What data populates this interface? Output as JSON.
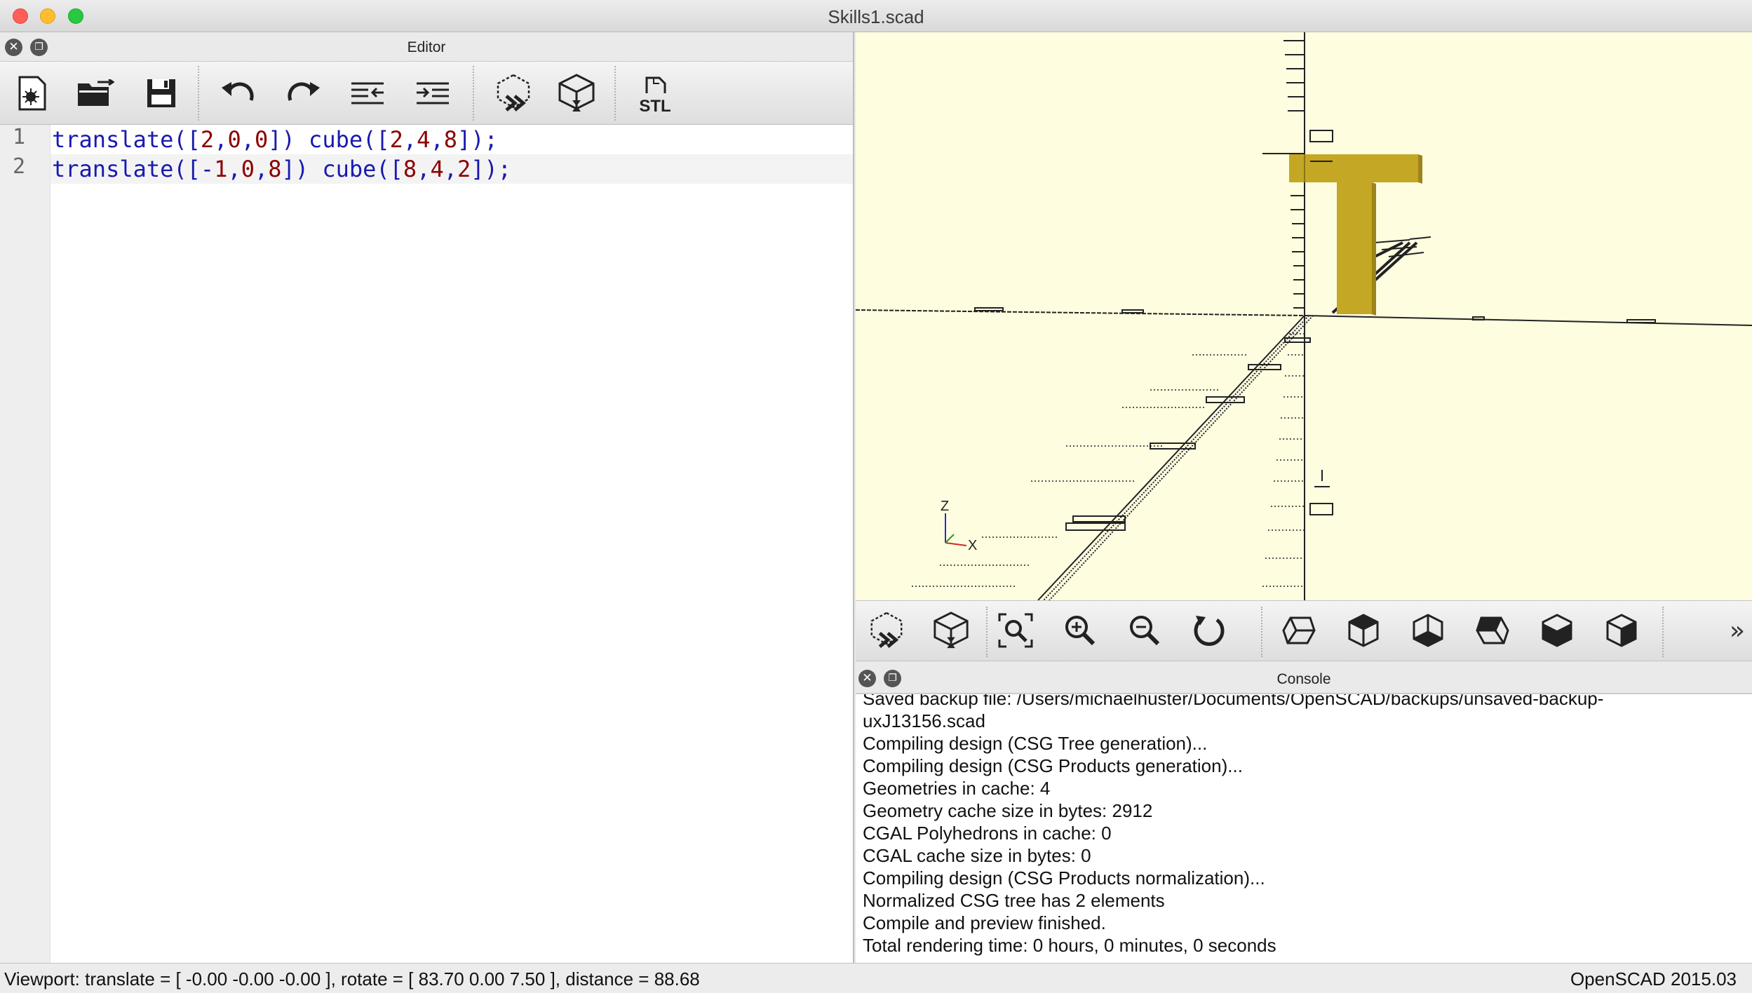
{
  "window": {
    "title": "Skills1.scad"
  },
  "editor": {
    "title": "Editor",
    "lines": [
      {
        "number": "1",
        "text": "translate([2,0,0]) cube([2,4,8]);"
      },
      {
        "number": "2",
        "text": "translate([-1,0,8]) cube([8,4,2]);"
      }
    ]
  },
  "toolbar_stl_label": "STL",
  "viewport": {
    "axis_labels": {
      "z": "Z",
      "x": "X"
    },
    "colors": {
      "background": "#fefde0",
      "model": "#c4a724"
    }
  },
  "console": {
    "title": "Console",
    "lines": [
      "Saved backup file: /Users/michaelhuster/Documents/OpenSCAD/backups/unsaved-backup-",
      "uxJ13156.scad",
      "Compiling design (CSG Tree generation)...",
      "Compiling design (CSG Products generation)...",
      "Geometries in cache: 4",
      "Geometry cache size in bytes: 2912",
      "CGAL Polyhedrons in cache: 0",
      "CGAL cache size in bytes: 0",
      "Compiling design (CSG Products normalization)...",
      "Normalized CSG tree has 2 elements",
      "Compile and preview finished.",
      "Total rendering time: 0 hours, 0 minutes, 0 seconds"
    ]
  },
  "status": {
    "viewport": "Viewport: translate = [ -0.00 -0.00 -0.00 ], rotate = [ 83.70 0.00 7.50 ], distance = 88.68",
    "version": "OpenSCAD 2015.03"
  }
}
